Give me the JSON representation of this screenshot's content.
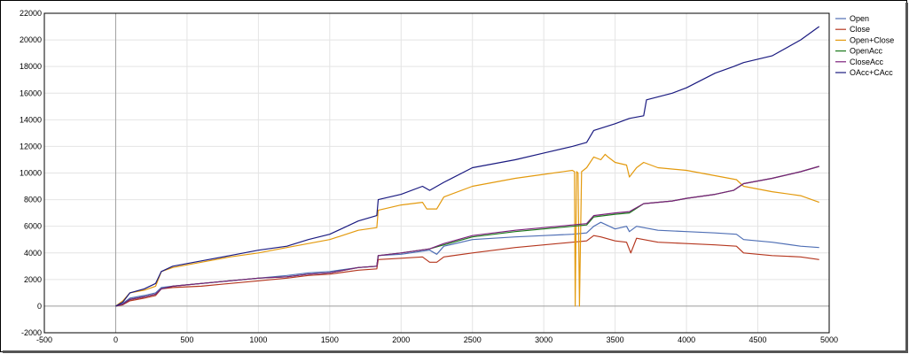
{
  "chart_data": {
    "type": "line",
    "title": "",
    "xlabel": "",
    "ylabel": "",
    "xlim": [
      -500,
      5000
    ],
    "ylim": [
      -2000,
      22000
    ],
    "x_ticks": [
      -500,
      0,
      500,
      1000,
      1500,
      2000,
      2500,
      3000,
      3500,
      4000,
      4500,
      5000
    ],
    "y_ticks": [
      -2000,
      0,
      2000,
      4000,
      6000,
      8000,
      10000,
      12000,
      14000,
      16000,
      18000,
      20000,
      22000
    ],
    "grid": true,
    "legend_position": "right",
    "series": [
      {
        "name": "Open",
        "color": "#4f6fb5",
        "points": [
          [
            0,
            0
          ],
          [
            50,
            200
          ],
          [
            100,
            600
          ],
          [
            200,
            800
          ],
          [
            280,
            1000
          ],
          [
            320,
            1400
          ],
          [
            400,
            1500
          ],
          [
            600,
            1700
          ],
          [
            800,
            1900
          ],
          [
            1000,
            2100
          ],
          [
            1200,
            2300
          ],
          [
            1350,
            2500
          ],
          [
            1500,
            2600
          ],
          [
            1700,
            2900
          ],
          [
            1830,
            3000
          ],
          [
            1840,
            3800
          ],
          [
            2000,
            3900
          ],
          [
            2200,
            4200
          ],
          [
            2250,
            3900
          ],
          [
            2300,
            4500
          ],
          [
            2500,
            5000
          ],
          [
            2800,
            5200
          ],
          [
            3000,
            5300
          ],
          [
            3200,
            5400
          ],
          [
            3300,
            5500
          ],
          [
            3350,
            6000
          ],
          [
            3400,
            6300
          ],
          [
            3500,
            5800
          ],
          [
            3580,
            6000
          ],
          [
            3600,
            5600
          ],
          [
            3650,
            6000
          ],
          [
            3800,
            5700
          ],
          [
            4000,
            5600
          ],
          [
            4200,
            5500
          ],
          [
            4350,
            5400
          ],
          [
            4400,
            5000
          ],
          [
            4600,
            4800
          ],
          [
            4800,
            4500
          ],
          [
            4930,
            4400
          ]
        ]
      },
      {
        "name": "Close",
        "color": "#b5371f",
        "points": [
          [
            0,
            0
          ],
          [
            50,
            100
          ],
          [
            100,
            400
          ],
          [
            200,
            600
          ],
          [
            280,
            800
          ],
          [
            320,
            1300
          ],
          [
            400,
            1400
          ],
          [
            600,
            1500
          ],
          [
            800,
            1700
          ],
          [
            1000,
            1900
          ],
          [
            1200,
            2100
          ],
          [
            1350,
            2300
          ],
          [
            1500,
            2400
          ],
          [
            1700,
            2700
          ],
          [
            1830,
            2800
          ],
          [
            1840,
            3500
          ],
          [
            2000,
            3600
          ],
          [
            2150,
            3700
          ],
          [
            2200,
            3300
          ],
          [
            2250,
            3300
          ],
          [
            2300,
            3700
          ],
          [
            2500,
            4000
          ],
          [
            2800,
            4400
          ],
          [
            3000,
            4600
          ],
          [
            3200,
            4800
          ],
          [
            3300,
            4900
          ],
          [
            3350,
            5300
          ],
          [
            3400,
            5200
          ],
          [
            3500,
            4900
          ],
          [
            3580,
            4800
          ],
          [
            3610,
            4000
          ],
          [
            3650,
            5100
          ],
          [
            3800,
            4800
          ],
          [
            4000,
            4700
          ],
          [
            4200,
            4600
          ],
          [
            4350,
            4500
          ],
          [
            4400,
            4000
          ],
          [
            4600,
            3800
          ],
          [
            4800,
            3700
          ],
          [
            4930,
            3500
          ]
        ]
      },
      {
        "name": "Open+Close",
        "color": "#e39a0e",
        "points": [
          [
            0,
            0
          ],
          [
            50,
            400
          ],
          [
            100,
            1000
          ],
          [
            200,
            1200
          ],
          [
            280,
            1500
          ],
          [
            320,
            2600
          ],
          [
            400,
            2900
          ],
          [
            600,
            3300
          ],
          [
            800,
            3700
          ],
          [
            1000,
            4000
          ],
          [
            1200,
            4400
          ],
          [
            1350,
            4700
          ],
          [
            1500,
            5000
          ],
          [
            1700,
            5700
          ],
          [
            1830,
            5900
          ],
          [
            1840,
            7200
          ],
          [
            2000,
            7600
          ],
          [
            2150,
            7800
          ],
          [
            2180,
            7300
          ],
          [
            2250,
            7300
          ],
          [
            2300,
            8200
          ],
          [
            2500,
            9000
          ],
          [
            2800,
            9600
          ],
          [
            3000,
            9900
          ],
          [
            3200,
            10200
          ],
          [
            3215,
            10100
          ],
          [
            3220,
            0
          ],
          [
            3230,
            10100
          ],
          [
            3240,
            10000
          ],
          [
            3250,
            0
          ],
          [
            3265,
            10100
          ],
          [
            3300,
            10400
          ],
          [
            3350,
            11200
          ],
          [
            3400,
            11000
          ],
          [
            3430,
            11400
          ],
          [
            3450,
            11200
          ],
          [
            3500,
            10800
          ],
          [
            3580,
            10600
          ],
          [
            3600,
            9700
          ],
          [
            3650,
            10400
          ],
          [
            3700,
            10800
          ],
          [
            3800,
            10400
          ],
          [
            4000,
            10200
          ],
          [
            4200,
            9800
          ],
          [
            4350,
            9500
          ],
          [
            4400,
            9000
          ],
          [
            4600,
            8600
          ],
          [
            4800,
            8300
          ],
          [
            4930,
            7800
          ]
        ]
      },
      {
        "name": "OpenAcc",
        "color": "#1c7a1c",
        "points": [
          [
            0,
            0
          ],
          [
            50,
            150
          ],
          [
            100,
            500
          ],
          [
            200,
            700
          ],
          [
            280,
            900
          ],
          [
            320,
            1300
          ],
          [
            400,
            1500
          ],
          [
            600,
            1700
          ],
          [
            800,
            1900
          ],
          [
            1000,
            2100
          ],
          [
            1200,
            2200
          ],
          [
            1350,
            2400
          ],
          [
            1500,
            2500
          ],
          [
            1700,
            2900
          ],
          [
            1830,
            3000
          ],
          [
            1840,
            3800
          ],
          [
            2000,
            4000
          ],
          [
            2200,
            4300
          ],
          [
            2300,
            4600
          ],
          [
            2500,
            5200
          ],
          [
            2800,
            5600
          ],
          [
            3000,
            5800
          ],
          [
            3200,
            6000
          ],
          [
            3300,
            6100
          ],
          [
            3350,
            6700
          ],
          [
            3500,
            6900
          ],
          [
            3600,
            7000
          ],
          [
            3700,
            7700
          ],
          [
            3900,
            7900
          ],
          [
            4000,
            8100
          ],
          [
            4200,
            8400
          ],
          [
            4330,
            8700
          ],
          [
            4400,
            9200
          ],
          [
            4600,
            9600
          ],
          [
            4800,
            10100
          ],
          [
            4930,
            10500
          ]
        ]
      },
      {
        "name": "CloseAcc",
        "color": "#7b1f7b",
        "points": [
          [
            0,
            0
          ],
          [
            50,
            150
          ],
          [
            100,
            500
          ],
          [
            200,
            700
          ],
          [
            280,
            900
          ],
          [
            320,
            1300
          ],
          [
            400,
            1500
          ],
          [
            600,
            1700
          ],
          [
            800,
            1900
          ],
          [
            1000,
            2100
          ],
          [
            1200,
            2200
          ],
          [
            1350,
            2400
          ],
          [
            1500,
            2500
          ],
          [
            1700,
            2900
          ],
          [
            1830,
            3000
          ],
          [
            1840,
            3800
          ],
          [
            2000,
            4000
          ],
          [
            2200,
            4300
          ],
          [
            2300,
            4700
          ],
          [
            2500,
            5300
          ],
          [
            2800,
            5700
          ],
          [
            3000,
            5900
          ],
          [
            3200,
            6100
          ],
          [
            3300,
            6200
          ],
          [
            3350,
            6800
          ],
          [
            3500,
            7000
          ],
          [
            3600,
            7100
          ],
          [
            3700,
            7700
          ],
          [
            3900,
            7900
          ],
          [
            4000,
            8100
          ],
          [
            4200,
            8400
          ],
          [
            4330,
            8700
          ],
          [
            4400,
            9200
          ],
          [
            4600,
            9600
          ],
          [
            4800,
            10100
          ],
          [
            4930,
            10500
          ]
        ]
      },
      {
        "name": "OAcc+CAcc",
        "color": "#1a1a80",
        "points": [
          [
            0,
            0
          ],
          [
            50,
            300
          ],
          [
            100,
            1000
          ],
          [
            200,
            1300
          ],
          [
            280,
            1700
          ],
          [
            320,
            2600
          ],
          [
            400,
            3000
          ],
          [
            600,
            3400
          ],
          [
            800,
            3800
          ],
          [
            1000,
            4200
          ],
          [
            1200,
            4500
          ],
          [
            1350,
            5000
          ],
          [
            1500,
            5400
          ],
          [
            1700,
            6400
          ],
          [
            1830,
            6800
          ],
          [
            1840,
            8000
          ],
          [
            2000,
            8400
          ],
          [
            2150,
            9000
          ],
          [
            2200,
            8700
          ],
          [
            2300,
            9300
          ],
          [
            2500,
            10400
          ],
          [
            2800,
            11000
          ],
          [
            3000,
            11500
          ],
          [
            3200,
            12000
          ],
          [
            3300,
            12300
          ],
          [
            3350,
            13200
          ],
          [
            3500,
            13700
          ],
          [
            3600,
            14100
          ],
          [
            3700,
            14300
          ],
          [
            3720,
            15500
          ],
          [
            3900,
            16000
          ],
          [
            4000,
            16400
          ],
          [
            4200,
            17500
          ],
          [
            4330,
            18000
          ],
          [
            4400,
            18300
          ],
          [
            4600,
            18800
          ],
          [
            4800,
            20000
          ],
          [
            4930,
            21000
          ]
        ]
      }
    ]
  }
}
